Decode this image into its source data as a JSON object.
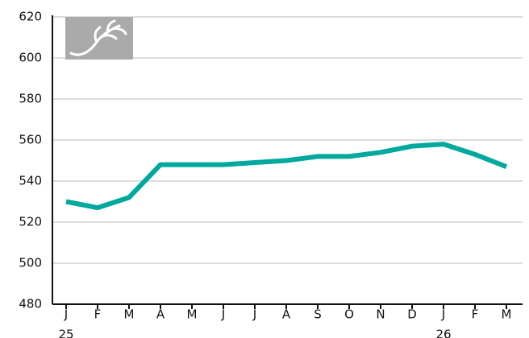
{
  "chart_data": {
    "type": "line",
    "categories": [
      "J",
      "F",
      "M",
      "A",
      "M",
      "J",
      "J",
      "A",
      "S",
      "O",
      "N",
      "D",
      "J",
      "F",
      "M"
    ],
    "year_labels": [
      "25",
      null,
      null,
      null,
      null,
      null,
      null,
      null,
      null,
      null,
      null,
      null,
      "26",
      null,
      null
    ],
    "series": [
      {
        "color": "#00a99d",
        "values": [
          530,
          527,
          532,
          548,
          548,
          548,
          549,
          550,
          552,
          552,
          554,
          557,
          558,
          553,
          547
        ]
      }
    ],
    "ylim": [
      480,
      620
    ],
    "yticks": [
      480,
      500,
      520,
      540,
      560,
      580,
      600,
      620
    ],
    "grid": true
  }
}
